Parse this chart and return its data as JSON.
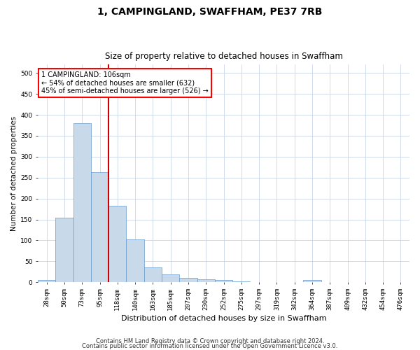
{
  "title": "1, CAMPINGLAND, SWAFFHAM, PE37 7RB",
  "subtitle": "Size of property relative to detached houses in Swaffham",
  "xlabel": "Distribution of detached houses by size in Swaffham",
  "ylabel": "Number of detached properties",
  "categories": [
    "28sqm",
    "50sqm",
    "73sqm",
    "95sqm",
    "118sqm",
    "140sqm",
    "163sqm",
    "185sqm",
    "207sqm",
    "230sqm",
    "252sqm",
    "275sqm",
    "297sqm",
    "319sqm",
    "342sqm",
    "364sqm",
    "387sqm",
    "409sqm",
    "432sqm",
    "454sqm",
    "476sqm"
  ],
  "values": [
    5,
    155,
    380,
    263,
    183,
    102,
    35,
    19,
    10,
    7,
    5,
    2,
    0,
    0,
    0,
    5,
    0,
    0,
    0,
    0,
    0
  ],
  "bar_color": "#c8daea",
  "bar_edge_color": "#6699cc",
  "vline_x": 3.5,
  "vline_color": "#cc0000",
  "ylim": [
    0,
    520
  ],
  "yticks": [
    0,
    50,
    100,
    150,
    200,
    250,
    300,
    350,
    400,
    450,
    500
  ],
  "annotation_line1": "1 CAMPINGLAND: 106sqm",
  "annotation_line2": "← 54% of detached houses are smaller (632)",
  "annotation_line3": "45% of semi-detached houses are larger (526) →",
  "footnote1": "Contains HM Land Registry data © Crown copyright and database right 2024.",
  "footnote2": "Contains public sector information licensed under the Open Government Licence v3.0.",
  "bg_color": "#ffffff",
  "grid_color": "#c8d4e8",
  "title_fontsize": 10,
  "subtitle_fontsize": 8.5,
  "ylabel_fontsize": 7.5,
  "xlabel_fontsize": 8,
  "tick_fontsize": 6.5,
  "annot_fontsize": 7,
  "footnote_fontsize": 6
}
